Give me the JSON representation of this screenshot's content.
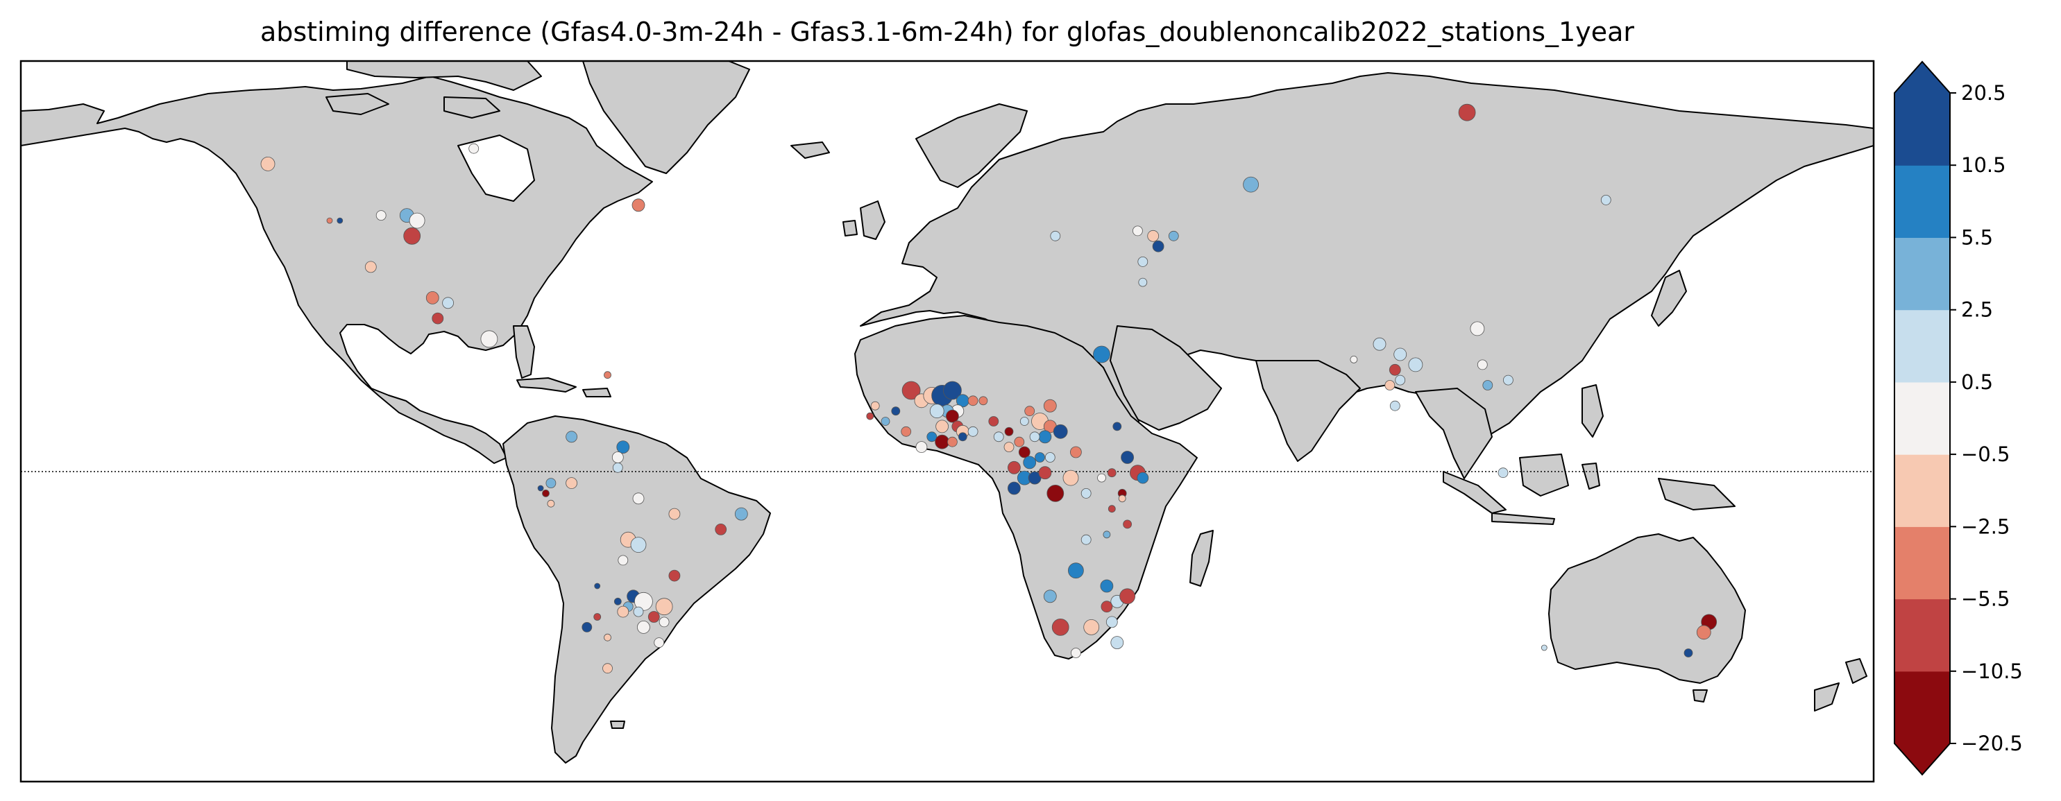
{
  "title": "abstiming difference (Gfas4.0-3m-24h - Gfas3.1-6m-24h) for glofas_doublenoncalib2022_stations_1year",
  "map": {
    "projection": "PlateCarree",
    "lon_range": [
      -180,
      180
    ],
    "lat_range": [
      -60,
      80
    ],
    "land_color": "#cccccc",
    "ocean_color": "#ffffff",
    "coastline_color": "#000000",
    "equator_line": "dotted"
  },
  "colorbar": {
    "extend": "both",
    "tick_labels": [
      "20.5",
      "10.5",
      "5.5",
      "2.5",
      "0.5",
      "−0.5",
      "−2.5",
      "−5.5",
      "−10.5",
      "−20.5"
    ],
    "bins": [
      {
        "from": -20.5,
        "to": -10.5,
        "color": "#8c0a0f"
      },
      {
        "from": -10.5,
        "to": -5.5,
        "color": "#c04343"
      },
      {
        "from": -5.5,
        "to": -2.5,
        "color": "#e4806a"
      },
      {
        "from": -2.5,
        "to": -0.5,
        "color": "#f7c9b2"
      },
      {
        "from": -0.5,
        "to": 0.5,
        "color": "#f4f2f1"
      },
      {
        "from": 0.5,
        "to": 2.5,
        "color": "#c7deed"
      },
      {
        "from": 2.5,
        "to": 5.5,
        "color": "#78b2d8"
      },
      {
        "from": 5.5,
        "to": 10.5,
        "color": "#2581c3"
      },
      {
        "from": 10.5,
        "to": 20.5,
        "color": "#1b4c91"
      }
    ]
  },
  "stations": [
    {
      "lon": 101,
      "lat": 70,
      "v": -8,
      "r": 12
    },
    {
      "lon": 59,
      "lat": 56,
      "v": 4,
      "r": 11
    },
    {
      "lon": -132,
      "lat": 60,
      "v": -1.5,
      "r": 10
    },
    {
      "lon": -92,
      "lat": 63,
      "v": 0,
      "r": 7
    },
    {
      "lon": -60,
      "lat": 52,
      "v": -4,
      "r": 9
    },
    {
      "lon": -105,
      "lat": 50,
      "v": 4,
      "r": 10
    },
    {
      "lon": -103,
      "lat": 49,
      "v": 0,
      "r": 11
    },
    {
      "lon": -104,
      "lat": 46,
      "v": -7,
      "r": 12
    },
    {
      "lon": -110,
      "lat": 50,
      "v": 0,
      "r": 7
    },
    {
      "lon": -120,
      "lat": 49,
      "v": -3,
      "r": 4
    },
    {
      "lon": -118,
      "lat": 49,
      "v": 13,
      "r": 4
    },
    {
      "lon": -112,
      "lat": 40,
      "v": -1.5,
      "r": 8
    },
    {
      "lon": -100,
      "lat": 34,
      "v": -4,
      "r": 9
    },
    {
      "lon": -97,
      "lat": 33,
      "v": 2,
      "r": 8
    },
    {
      "lon": -99,
      "lat": 30,
      "v": -6,
      "r": 8
    },
    {
      "lon": -89,
      "lat": 26,
      "v": 0,
      "r": 12
    },
    {
      "lon": -73,
      "lat": 7,
      "v": 3,
      "r": 8
    },
    {
      "lon": -77,
      "lat": -2,
      "v": 3,
      "r": 7
    },
    {
      "lon": -79,
      "lat": -3,
      "v": 13,
      "r": 4
    },
    {
      "lon": -78,
      "lat": -4,
      "v": -15,
      "r": 5
    },
    {
      "lon": -77,
      "lat": -6,
      "v": -2,
      "r": 5
    },
    {
      "lon": -73,
      "lat": -2,
      "v": -1.5,
      "r": 8
    },
    {
      "lon": -63,
      "lat": 5,
      "v": 8,
      "r": 9
    },
    {
      "lon": -64,
      "lat": 3,
      "v": 0,
      "r": 8
    },
    {
      "lon": -64,
      "lat": 1,
      "v": 2,
      "r": 7
    },
    {
      "lon": -60,
      "lat": -5,
      "v": 0,
      "r": 8
    },
    {
      "lon": -53,
      "lat": -8,
      "v": -1.5,
      "r": 8
    },
    {
      "lon": -40,
      "lat": -8,
      "v": 4,
      "r": 9
    },
    {
      "lon": -44,
      "lat": -11,
      "v": -7,
      "r": 8
    },
    {
      "lon": -62,
      "lat": -13,
      "v": -1.5,
      "r": 11
    },
    {
      "lon": -60,
      "lat": -14,
      "v": 2,
      "r": 11
    },
    {
      "lon": -63,
      "lat": -17,
      "v": 0,
      "r": 7
    },
    {
      "lon": -53,
      "lat": -20,
      "v": -7,
      "r": 8
    },
    {
      "lon": -61,
      "lat": -24,
      "v": 13,
      "r": 9
    },
    {
      "lon": -62,
      "lat": -26,
      "v": 3,
      "r": 7
    },
    {
      "lon": -64,
      "lat": -25,
      "v": 13,
      "r": 5
    },
    {
      "lon": -63,
      "lat": -27,
      "v": -1.5,
      "r": 8
    },
    {
      "lon": -59,
      "lat": -25,
      "v": 0,
      "r": 13
    },
    {
      "lon": -55,
      "lat": -26,
      "v": -1.5,
      "r": 12
    },
    {
      "lon": -57,
      "lat": -28,
      "v": -6,
      "r": 8
    },
    {
      "lon": -60,
      "lat": -27,
      "v": 2,
      "r": 7
    },
    {
      "lon": -59,
      "lat": -30,
      "v": 0,
      "r": 9
    },
    {
      "lon": -55,
      "lat": -29,
      "v": 0,
      "r": 7
    },
    {
      "lon": -68,
      "lat": -28,
      "v": -7,
      "r": 5
    },
    {
      "lon": -70,
      "lat": -30,
      "v": 13,
      "r": 7
    },
    {
      "lon": -66,
      "lat": -32,
      "v": -1.5,
      "r": 5
    },
    {
      "lon": -56,
      "lat": -33,
      "v": 0,
      "r": 7
    },
    {
      "lon": -66,
      "lat": -38,
      "v": -1.5,
      "r": 7
    },
    {
      "lon": -68,
      "lat": -22,
      "v": 13,
      "r": 4
    },
    {
      "lon": -66,
      "lat": 19,
      "v": -4,
      "r": 5
    },
    {
      "lon": 37,
      "lat": 47,
      "v": 0,
      "r": 7
    },
    {
      "lon": 40,
      "lat": 46,
      "v": -1.5,
      "r": 8
    },
    {
      "lon": 41,
      "lat": 44,
      "v": 13,
      "r": 8
    },
    {
      "lon": 44,
      "lat": 46,
      "v": 4,
      "r": 7
    },
    {
      "lon": 21,
      "lat": 46,
      "v": 2,
      "r": 7
    },
    {
      "lon": 38,
      "lat": 41,
      "v": 2,
      "r": 7
    },
    {
      "lon": 38,
      "lat": 37,
      "v": 2,
      "r": 6
    },
    {
      "lon": 103,
      "lat": 28,
      "v": 0,
      "r": 10
    },
    {
      "lon": 128,
      "lat": 53,
      "v": 2,
      "r": 7
    },
    {
      "lon": 84,
      "lat": 25,
      "v": 2,
      "r": 9
    },
    {
      "lon": 88,
      "lat": 23,
      "v": 2,
      "r": 9
    },
    {
      "lon": 91,
      "lat": 21,
      "v": 2,
      "r": 10
    },
    {
      "lon": 87,
      "lat": 20,
      "v": -6,
      "r": 8
    },
    {
      "lon": 88,
      "lat": 18,
      "v": 2,
      "r": 7
    },
    {
      "lon": 86,
      "lat": 17,
      "v": -1.5,
      "r": 7
    },
    {
      "lon": 87,
      "lat": 13,
      "v": 2,
      "r": 7
    },
    {
      "lon": 105,
      "lat": 17,
      "v": 4,
      "r": 7
    },
    {
      "lon": 104,
      "lat": 21,
      "v": 0,
      "r": 7
    },
    {
      "lon": 109,
      "lat": 18,
      "v": 2,
      "r": 7
    },
    {
      "lon": 79,
      "lat": 22,
      "v": 0,
      "r": 5
    },
    {
      "lon": 108,
      "lat": 0,
      "v": 2,
      "r": 7
    },
    {
      "lon": 30,
      "lat": 23,
      "v": 8,
      "r": 12
    },
    {
      "lon": -7,
      "lat": 16,
      "v": -8,
      "r": 13
    },
    {
      "lon": -5,
      "lat": 14,
      "v": -1.5,
      "r": 10
    },
    {
      "lon": -3,
      "lat": 15,
      "v": -1.5,
      "r": 12
    },
    {
      "lon": -1,
      "lat": 15,
      "v": 13,
      "r": 15
    },
    {
      "lon": 1,
      "lat": 16,
      "v": 13,
      "r": 13
    },
    {
      "lon": 3,
      "lat": 14,
      "v": 8,
      "r": 9
    },
    {
      "lon": 5,
      "lat": 14,
      "v": -4,
      "r": 7
    },
    {
      "lon": 7,
      "lat": 14,
      "v": -4,
      "r": 6
    },
    {
      "lon": 2,
      "lat": 12,
      "v": 0,
      "r": 9
    },
    {
      "lon": 0,
      "lat": 12,
      "v": 4,
      "r": 9
    },
    {
      "lon": -2,
      "lat": 12,
      "v": 2,
      "r": 10
    },
    {
      "lon": 1,
      "lat": 11,
      "v": -15,
      "r": 9
    },
    {
      "lon": 2,
      "lat": 9,
      "v": -8,
      "r": 8
    },
    {
      "lon": -1,
      "lat": 9,
      "v": -1.5,
      "r": 9
    },
    {
      "lon": 3,
      "lat": 8,
      "v": -1.5,
      "r": 9
    },
    {
      "lon": 5,
      "lat": 8,
      "v": 2,
      "r": 7
    },
    {
      "lon": -3,
      "lat": 7,
      "v": 8,
      "r": 7
    },
    {
      "lon": -1,
      "lat": 6,
      "v": -15,
      "r": 10
    },
    {
      "lon": 1,
      "lat": 6,
      "v": -4,
      "r": 7
    },
    {
      "lon": 3,
      "lat": 7,
      "v": 13,
      "r": 6
    },
    {
      "lon": -5,
      "lat": 5,
      "v": 0,
      "r": 8
    },
    {
      "lon": -8,
      "lat": 8,
      "v": -4,
      "r": 7
    },
    {
      "lon": -10,
      "lat": 12,
      "v": 13,
      "r": 6
    },
    {
      "lon": -12,
      "lat": 10,
      "v": 4,
      "r": 6
    },
    {
      "lon": -14,
      "lat": 13,
      "v": -1.5,
      "r": 6
    },
    {
      "lon": -15,
      "lat": 11,
      "v": -8,
      "r": 5
    },
    {
      "lon": 9,
      "lat": 10,
      "v": -6,
      "r": 7
    },
    {
      "lon": 10,
      "lat": 7,
      "v": 2,
      "r": 7
    },
    {
      "lon": 12,
      "lat": 8,
      "v": -15,
      "r": 6
    },
    {
      "lon": 15,
      "lat": 10,
      "v": 2,
      "r": 6
    },
    {
      "lon": 16,
      "lat": 12,
      "v": -4,
      "r": 7
    },
    {
      "lon": 20,
      "lat": 13,
      "v": -4,
      "r": 9
    },
    {
      "lon": 18,
      "lat": 10,
      "v": -1.5,
      "r": 12
    },
    {
      "lon": 20,
      "lat": 9,
      "v": -4,
      "r": 9
    },
    {
      "lon": 22,
      "lat": 8,
      "v": 13,
      "r": 10
    },
    {
      "lon": 19,
      "lat": 7,
      "v": 8,
      "r": 9
    },
    {
      "lon": 17,
      "lat": 7,
      "v": 2,
      "r": 7
    },
    {
      "lon": 14,
      "lat": 6,
      "v": -4,
      "r": 7
    },
    {
      "lon": 12,
      "lat": 5,
      "v": -1.5,
      "r": 7
    },
    {
      "lon": 15,
      "lat": 4,
      "v": -15,
      "r": 8
    },
    {
      "lon": 16,
      "lat": 2,
      "v": 8,
      "r": 9
    },
    {
      "lon": 18,
      "lat": 3,
      "v": 8,
      "r": 7
    },
    {
      "lon": 20,
      "lat": 3,
      "v": 2,
      "r": 7
    },
    {
      "lon": 25,
      "lat": 4,
      "v": -4,
      "r": 8
    },
    {
      "lon": 13,
      "lat": 1,
      "v": -6,
      "r": 9
    },
    {
      "lon": 15,
      "lat": -1,
      "v": 8,
      "r": 10
    },
    {
      "lon": 17,
      "lat": -1,
      "v": 13,
      "r": 9
    },
    {
      "lon": 19,
      "lat": 0,
      "v": -6,
      "r": 9
    },
    {
      "lon": 13,
      "lat": -3,
      "v": 13,
      "r": 9
    },
    {
      "lon": 21,
      "lat": -4,
      "v": -15,
      "r": 12
    },
    {
      "lon": 24,
      "lat": -1,
      "v": -1.5,
      "r": 11
    },
    {
      "lon": 27,
      "lat": -4,
      "v": 2,
      "r": 7
    },
    {
      "lon": 30,
      "lat": -1,
      "v": 0,
      "r": 6
    },
    {
      "lon": 32,
      "lat": 0,
      "v": -6,
      "r": 6
    },
    {
      "lon": 34,
      "lat": -4,
      "v": -15,
      "r": 6
    },
    {
      "lon": 35,
      "lat": 3,
      "v": 13,
      "r": 9
    },
    {
      "lon": 37,
      "lat": 0,
      "v": -8,
      "r": 11
    },
    {
      "lon": 38,
      "lat": -1,
      "v": 8,
      "r": 8
    },
    {
      "lon": 33,
      "lat": 9,
      "v": 13,
      "r": 6
    },
    {
      "lon": 32,
      "lat": -7,
      "v": -6,
      "r": 5
    },
    {
      "lon": 35,
      "lat": -10,
      "v": -8,
      "r": 6
    },
    {
      "lon": 34,
      "lat": -5,
      "v": -1.5,
      "r": 5
    },
    {
      "lon": 27,
      "lat": -13,
      "v": 2,
      "r": 7
    },
    {
      "lon": 31,
      "lat": -12,
      "v": 4,
      "r": 5
    },
    {
      "lon": 25,
      "lat": -19,
      "v": 8,
      "r": 11
    },
    {
      "lon": 31,
      "lat": -22,
      "v": 8,
      "r": 9
    },
    {
      "lon": 33,
      "lat": -25,
      "v": 2,
      "r": 9
    },
    {
      "lon": 35,
      "lat": -24,
      "v": -6,
      "r": 11
    },
    {
      "lon": 31,
      "lat": -26,
      "v": -8,
      "r": 8
    },
    {
      "lon": 32,
      "lat": -29,
      "v": 2,
      "r": 8
    },
    {
      "lon": 20,
      "lat": -24,
      "v": 4,
      "r": 9
    },
    {
      "lon": 22,
      "lat": -30,
      "v": -6,
      "r": 12
    },
    {
      "lon": 28,
      "lat": -30,
      "v": -1.5,
      "r": 11
    },
    {
      "lon": 33,
      "lat": -33,
      "v": 2,
      "r": 9
    },
    {
      "lon": 25,
      "lat": -35,
      "v": 0,
      "r": 7
    },
    {
      "lon": 148,
      "lat": -29,
      "v": -15,
      "r": 11
    },
    {
      "lon": 147,
      "lat": -31,
      "v": -4,
      "r": 10
    },
    {
      "lon": 144,
      "lat": -35,
      "v": 13,
      "r": 6
    },
    {
      "lon": 116,
      "lat": -34,
      "v": 2,
      "r": 4
    }
  ]
}
